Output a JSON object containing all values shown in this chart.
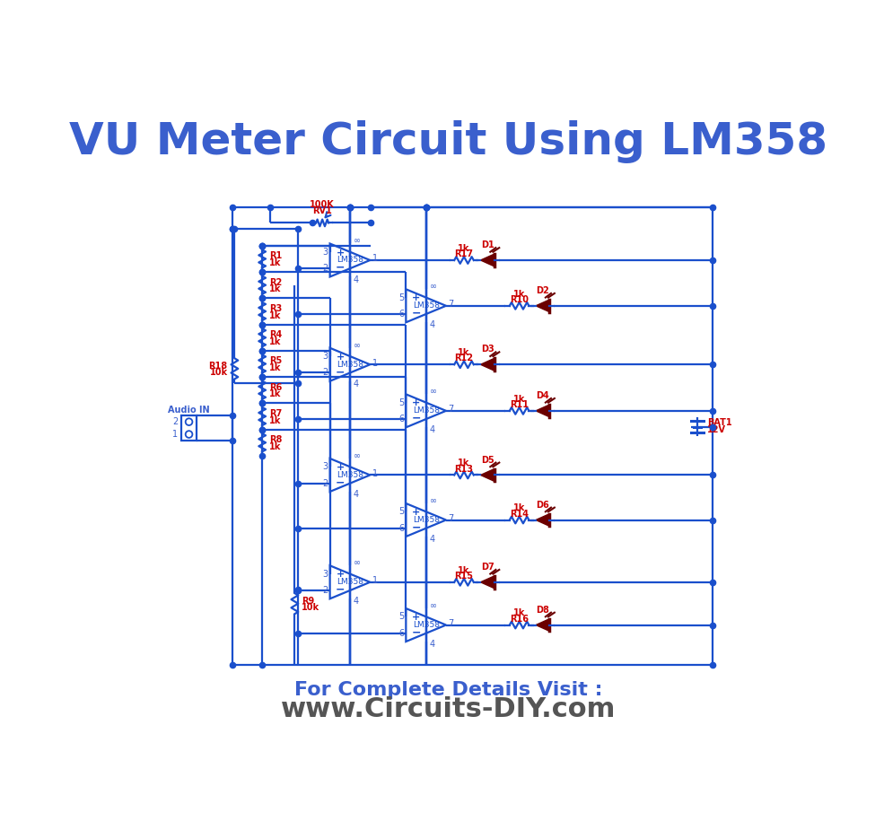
{
  "title": "VU Meter Circuit Using LM358",
  "title_color": "#3a5fcd",
  "title_fontsize": 36,
  "title_fontweight": "bold",
  "footer_line1": "For Complete Details Visit :",
  "footer_line2": "www.Circuits-DIY.com",
  "footer_line1_color": "#3a5fcd",
  "footer_line2_color": "#555555",
  "footer_line1_fontsize": 16,
  "footer_line2_fontsize": 22,
  "bg_color": "#ffffff",
  "circuit_color": "#1a4fcc",
  "label_color_red": "#cc0000",
  "label_color_blue": "#3a5fcd",
  "wire_lw": 1.6,
  "diode_color": "#6b0000"
}
